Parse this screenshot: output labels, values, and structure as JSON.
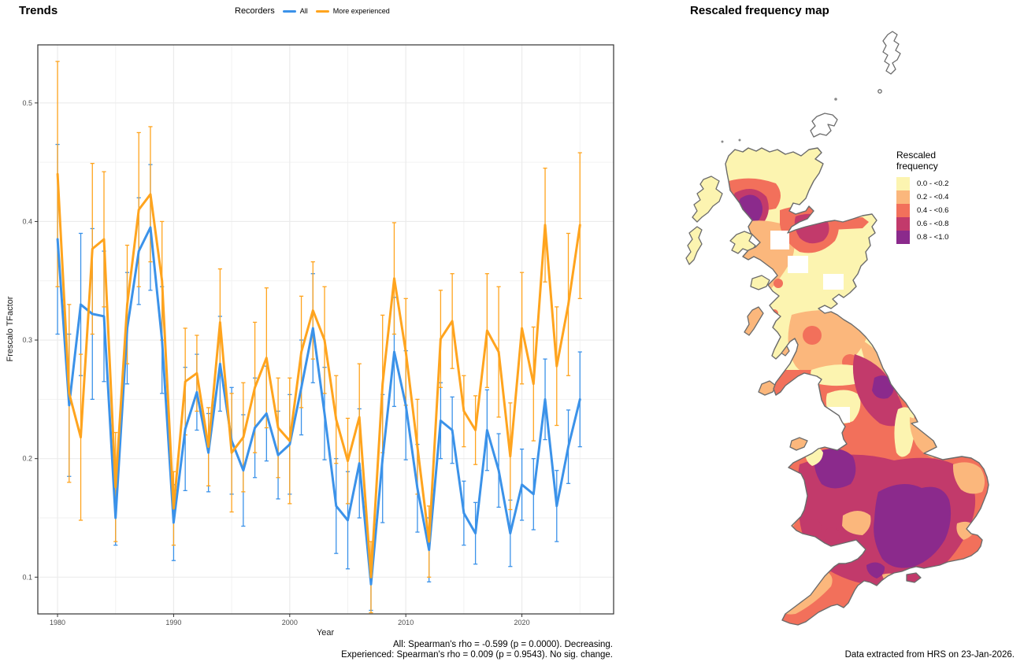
{
  "left_panel": {
    "title": "Trends",
    "legend": {
      "title": "Recorders",
      "items": [
        {
          "label": "All",
          "color": "#3B92E9"
        },
        {
          "label": "More experienced",
          "color": "#FFA41E"
        }
      ]
    },
    "captions": [
      "All: Spearman's rho = -0.599 (p = 0.0000). Decreasing.",
      "Experienced: Spearman's rho = 0.009 (p = 0.9543). No sig. change."
    ]
  },
  "right_panel": {
    "title": "Rescaled frequency map",
    "legend_title": "Rescaled\nfrequency",
    "caption": "Data extracted from HRS on 23-Jan-2026."
  },
  "chart_data": [
    {
      "type": "line",
      "title": "Trends",
      "xlabel": "Year",
      "ylabel": "Frescalo TFactor",
      "x_ticks": [
        1980,
        1990,
        2000,
        2010,
        2020
      ],
      "x_minor_ticks": [
        1985,
        1995,
        2005,
        2015,
        2025
      ],
      "y_ticks": [
        0.1,
        0.2,
        0.3,
        0.4,
        0.5
      ],
      "y_minor_ticks": [
        0.15,
        0.25,
        0.35,
        0.45
      ],
      "xlim": [
        1978.3,
        2027.9
      ],
      "ylim": [
        0.069,
        0.549
      ],
      "grid": true,
      "legend_position": "top",
      "error_bars": true,
      "years": [
        1980,
        1981,
        1982,
        1983,
        1984,
        1985,
        1986,
        1987,
        1988,
        1989,
        1990,
        1991,
        1992,
        1993,
        1994,
        1995,
        1996,
        1997,
        1998,
        1999,
        2000,
        2001,
        2002,
        2003,
        2004,
        2005,
        2006,
        2007,
        2008,
        2009,
        2010,
        2011,
        2012,
        2013,
        2014,
        2015,
        2016,
        2017,
        2018,
        2019,
        2020,
        2021,
        2022,
        2023,
        2024,
        2025
      ],
      "series": [
        {
          "name": "All",
          "color": "#3B92E9",
          "values": [
            0.385,
            0.245,
            0.33,
            0.322,
            0.32,
            0.15,
            0.31,
            0.375,
            0.395,
            0.3,
            0.146,
            0.225,
            0.256,
            0.205,
            0.28,
            0.215,
            0.19,
            0.226,
            0.238,
            0.203,
            0.212,
            0.26,
            0.31,
            0.238,
            0.16,
            0.148,
            0.196,
            0.094,
            0.2,
            0.29,
            0.245,
            0.175,
            0.123,
            0.232,
            0.224,
            0.154,
            0.137,
            0.224,
            0.19,
            0.137,
            0.178,
            0.17,
            0.25,
            0.16,
            0.21,
            0.25
          ],
          "ci_low": [
            0.305,
            0.185,
            0.27,
            0.25,
            0.265,
            0.127,
            0.263,
            0.33,
            0.342,
            0.255,
            0.114,
            0.173,
            0.224,
            0.172,
            0.24,
            0.17,
            0.143,
            0.184,
            0.198,
            0.166,
            0.17,
            0.22,
            0.264,
            0.199,
            0.12,
            0.107,
            0.15,
            0.072,
            0.146,
            0.244,
            0.199,
            0.138,
            0.096,
            0.2,
            0.196,
            0.127,
            0.111,
            0.19,
            0.159,
            0.109,
            0.148,
            0.14,
            0.216,
            0.13,
            0.179,
            0.21
          ],
          "ci_high": [
            0.465,
            0.305,
            0.39,
            0.394,
            0.375,
            0.173,
            0.357,
            0.42,
            0.448,
            0.345,
            0.178,
            0.277,
            0.288,
            0.238,
            0.32,
            0.26,
            0.237,
            0.268,
            0.278,
            0.24,
            0.254,
            0.3,
            0.356,
            0.277,
            0.2,
            0.189,
            0.242,
            0.116,
            0.254,
            0.336,
            0.291,
            0.212,
            0.15,
            0.264,
            0.252,
            0.181,
            0.163,
            0.258,
            0.221,
            0.165,
            0.208,
            0.2,
            0.284,
            0.19,
            0.241,
            0.29
          ]
        },
        {
          "name": "More experienced",
          "color": "#FFA41E",
          "values": [
            0.44,
            0.255,
            0.218,
            0.377,
            0.385,
            0.176,
            0.33,
            0.41,
            0.423,
            0.35,
            0.158,
            0.265,
            0.272,
            0.21,
            0.315,
            0.205,
            0.218,
            0.26,
            0.285,
            0.226,
            0.215,
            0.29,
            0.325,
            0.3,
            0.233,
            0.198,
            0.235,
            0.1,
            0.263,
            0.352,
            0.29,
            0.21,
            0.13,
            0.301,
            0.316,
            0.24,
            0.224,
            0.308,
            0.29,
            0.202,
            0.31,
            0.263,
            0.397,
            0.278,
            0.33,
            0.397
          ],
          "ci_low": [
            0.345,
            0.18,
            0.148,
            0.305,
            0.328,
            0.13,
            0.28,
            0.345,
            0.366,
            0.3,
            0.127,
            0.22,
            0.24,
            0.177,
            0.27,
            0.155,
            0.172,
            0.205,
            0.226,
            0.184,
            0.162,
            0.243,
            0.284,
            0.255,
            0.196,
            0.162,
            0.19,
            0.07,
            0.205,
            0.305,
            0.245,
            0.17,
            0.1,
            0.26,
            0.276,
            0.21,
            0.195,
            0.26,
            0.235,
            0.157,
            0.263,
            0.215,
            0.349,
            0.228,
            0.27,
            0.335
          ],
          "ci_high": [
            0.535,
            0.33,
            0.288,
            0.449,
            0.442,
            0.222,
            0.38,
            0.475,
            0.48,
            0.4,
            0.189,
            0.31,
            0.304,
            0.243,
            0.36,
            0.255,
            0.264,
            0.315,
            0.344,
            0.268,
            0.268,
            0.337,
            0.366,
            0.345,
            0.27,
            0.234,
            0.28,
            0.13,
            0.321,
            0.399,
            0.335,
            0.25,
            0.16,
            0.342,
            0.356,
            0.27,
            0.253,
            0.356,
            0.345,
            0.247,
            0.357,
            0.311,
            0.445,
            0.328,
            0.39,
            0.458
          ]
        }
      ],
      "annotations": [
        "All: Spearman's rho = -0.599 (p = 0.0000). Decreasing.",
        "Experienced: Spearman's rho = 0.009 (p = 0.9543). No sig. change."
      ]
    },
    {
      "type": "heatmap",
      "subtype": "filled-contour-map",
      "title": "Rescaled frequency map",
      "region": "Great Britain",
      "legend_title": "Rescaled frequency",
      "legend_position": "right",
      "classes": [
        {
          "label": "0.0 - <0.2",
          "color": "#FCF4B0"
        },
        {
          "label": "0.2 - <0.4",
          "color": "#FBB77C"
        },
        {
          "label": "0.4 - <0.6",
          "color": "#F2705B"
        },
        {
          "label": "0.6 - <0.8",
          "color": "#C23A6B"
        },
        {
          "label": "0.8 - <1.0",
          "color": "#8B2A8C"
        }
      ],
      "pattern_notes": "High (0.8-1.0) areas: NW Scottish Highlands blob, SE England / Home Counties, Midlands-Welsh borders, parts of Pennines and south coast; lowlands of E Scotland and far N Scotland mostly 0.0-0.2; England and Wales mostly 0.4-0.8.",
      "caption": "Data extracted from HRS on 23-Jan-2026."
    }
  ]
}
